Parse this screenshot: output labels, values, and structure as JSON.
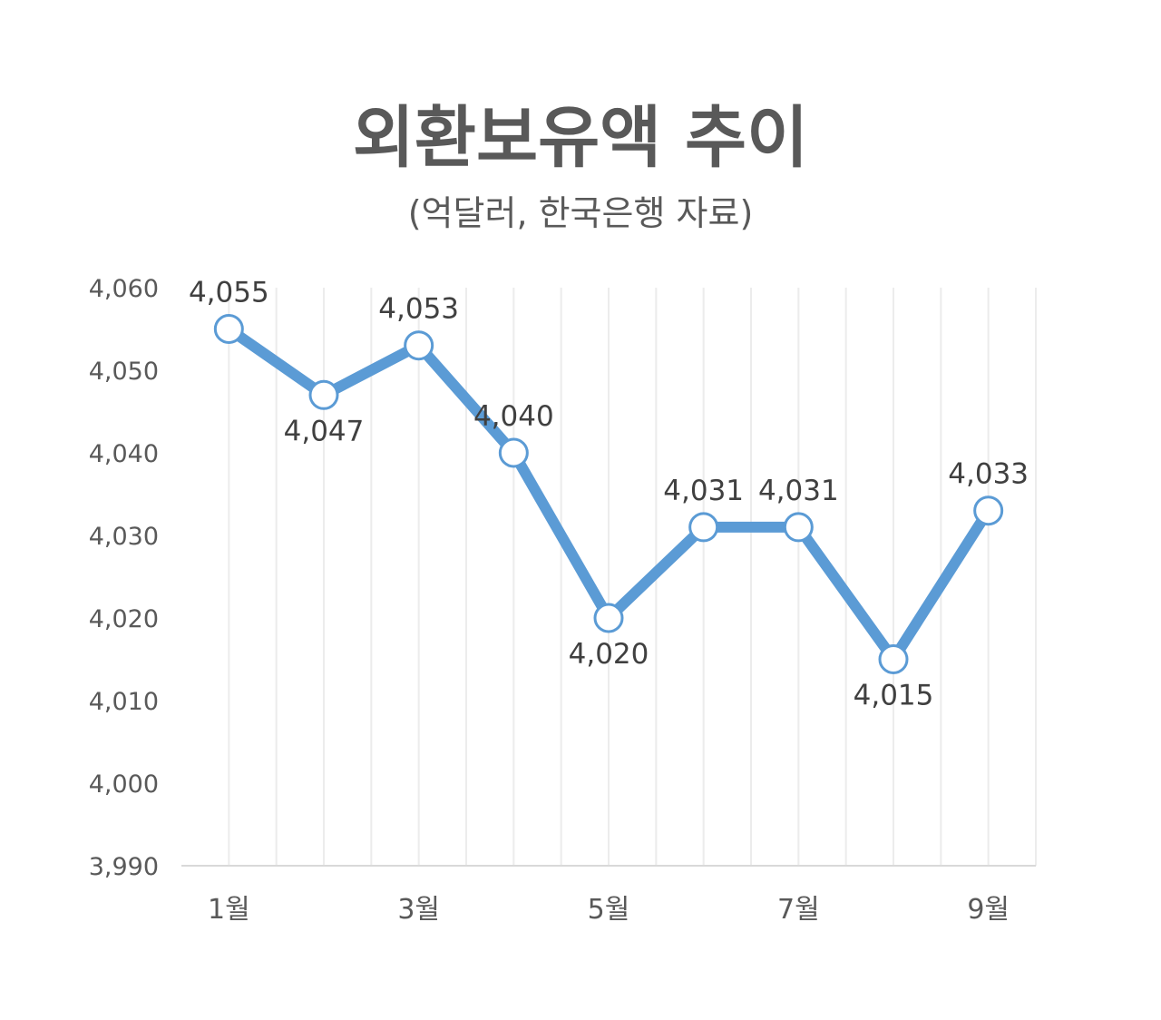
{
  "chart_data": {
    "type": "line",
    "title": "외환보유액 추이",
    "subtitle": "(억달러, 한국은행 자료)",
    "x": [
      1,
      2,
      3,
      4,
      5,
      6,
      7,
      8,
      9
    ],
    "x_tick_labels": [
      {
        "x": 1,
        "label": "1월"
      },
      {
        "x": 3,
        "label": "3월"
      },
      {
        "x": 5,
        "label": "5월"
      },
      {
        "x": 7,
        "label": "7월"
      },
      {
        "x": 9,
        "label": "9월"
      }
    ],
    "values": [
      4055,
      4047,
      4053,
      4040,
      4020,
      4031,
      4031,
      4015,
      4033
    ],
    "data_labels": [
      "4,055",
      "4,047",
      "4,053",
      "4,040",
      "4,020",
      "4,031",
      "4,031",
      "4,015",
      "4,033"
    ],
    "data_label_placement": [
      "above",
      "below",
      "above",
      "above",
      "below",
      "above",
      "above",
      "below",
      "above"
    ],
    "ylim": [
      3990,
      4060
    ],
    "y_ticks": [
      3990,
      4000,
      4010,
      4020,
      4030,
      4040,
      4050,
      4060
    ],
    "y_tick_labels": [
      "3,990",
      "4,000",
      "4,010",
      "4,020",
      "4,030",
      "4,040",
      "4,050",
      "4,060"
    ],
    "grid": "vertical",
    "legend": "none",
    "colors": {
      "line": "#5b9bd5",
      "marker_fill": "#ffffff",
      "grid": "#ececec",
      "axis": "#d9d9d9",
      "text": "#595959"
    }
  }
}
